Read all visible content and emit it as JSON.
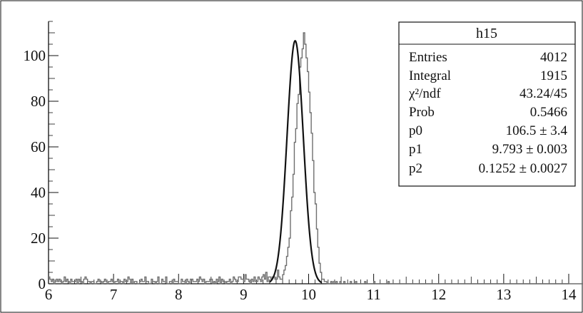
{
  "chart_data": {
    "type": "histogram",
    "title": "",
    "xlabel": "",
    "ylabel": "",
    "xlim": [
      6,
      14
    ],
    "ylim": [
      0,
      115
    ],
    "x_ticks": [
      "6",
      "7",
      "8",
      "9",
      "10",
      "11",
      "12",
      "13",
      "14"
    ],
    "y_ticks": [
      "0",
      "20",
      "40",
      "60",
      "80",
      "100"
    ],
    "grid": false,
    "series": [
      {
        "kind": "histogram",
        "bin_start": 6.0,
        "bin_width": 0.02,
        "values": [
          3,
          2,
          1,
          2,
          0,
          1,
          2,
          1,
          2,
          1,
          0,
          1,
          3,
          1,
          2,
          1,
          0,
          2,
          1,
          1,
          1,
          2,
          0,
          2,
          1,
          1,
          0,
          2,
          3,
          2,
          1,
          1,
          0,
          1,
          1,
          0,
          0,
          1,
          2,
          1,
          1,
          0,
          1,
          2,
          1,
          0,
          1,
          1,
          2,
          1,
          0,
          1,
          1,
          2,
          0,
          1,
          1,
          0,
          2,
          1,
          1,
          3,
          2,
          0,
          2,
          0,
          1,
          1,
          0,
          0,
          1,
          2,
          1,
          1,
          3,
          1,
          1,
          0,
          0,
          2,
          1,
          1,
          0,
          1,
          3,
          0,
          0,
          2,
          1,
          1,
          3,
          0,
          0,
          1,
          1,
          0,
          2,
          1,
          1,
          1,
          0,
          0,
          2,
          1,
          1,
          0,
          2,
          1,
          0,
          2,
          2,
          1,
          1,
          1,
          2,
          1,
          3,
          2,
          1,
          2,
          0,
          1,
          1,
          1,
          2,
          2,
          0,
          1,
          0,
          2,
          1,
          3,
          0,
          2,
          1,
          1,
          0,
          1,
          1,
          2,
          0,
          1,
          3,
          2,
          1,
          1,
          3,
          3,
          2,
          2,
          1,
          4,
          2,
          2,
          1,
          0,
          2,
          1,
          3,
          1,
          1,
          3,
          2,
          1,
          3,
          4,
          2,
          5,
          1,
          3,
          3,
          2,
          3,
          3,
          2,
          2,
          6,
          3,
          2,
          2,
          4,
          6,
          8,
          12,
          16,
          20,
          32,
          38,
          48,
          62,
          68,
          79,
          83,
          95,
          99,
          103,
          110,
          105,
          99,
          93,
          84,
          75,
          66,
          54,
          40,
          35,
          24,
          16,
          9,
          5,
          2,
          2,
          1,
          1,
          0,
          0,
          0,
          1,
          0,
          1,
          0,
          1,
          0,
          0,
          1,
          0,
          0,
          1,
          0,
          0,
          0,
          0,
          1,
          0,
          0,
          0,
          1,
          0,
          0,
          0,
          0,
          0,
          0,
          1,
          0,
          0,
          0,
          0,
          0,
          0,
          1,
          0,
          0,
          0,
          0,
          0,
          0,
          0,
          0,
          0,
          0,
          1,
          0,
          0,
          0,
          0,
          0,
          0,
          0,
          0,
          0,
          0,
          0,
          0,
          0,
          0,
          0,
          0,
          0,
          0,
          0,
          0,
          0,
          0,
          0,
          0,
          0,
          0,
          0,
          0,
          0,
          0,
          0,
          0,
          0,
          0,
          0,
          0,
          0,
          0,
          0,
          0,
          0,
          0,
          0,
          0,
          0,
          0,
          0,
          0,
          0,
          0,
          0,
          0,
          0,
          0,
          0,
          0,
          0,
          0,
          0,
          0,
          0,
          0,
          0,
          0,
          0,
          0,
          0,
          0,
          0,
          0,
          0,
          0,
          0,
          0,
          0,
          0,
          0,
          0,
          0,
          0,
          0,
          0,
          0,
          0,
          0,
          0,
          0,
          0,
          0,
          0,
          0,
          0,
          0,
          0,
          0,
          0,
          0,
          0,
          0,
          0,
          0,
          0,
          0,
          0,
          0,
          0,
          0,
          0,
          0,
          0,
          0,
          0,
          0,
          0,
          0,
          0,
          0,
          0,
          0,
          0,
          0,
          0,
          0,
          0,
          0,
          0,
          0,
          0,
          0,
          0,
          0,
          0,
          0,
          0,
          0,
          0,
          0,
          0,
          0,
          0,
          0,
          0,
          0,
          0,
          0,
          0,
          0,
          0,
          0,
          0,
          0,
          0,
          0,
          0,
          0,
          0,
          0,
          0,
          0,
          0,
          0
        ]
      },
      {
        "kind": "gaussian-fit",
        "p0": 106.5,
        "p1": 9.793,
        "p2": 0.1252,
        "x_range": [
          9.4,
          10.2
        ]
      }
    ],
    "stats_box": {
      "title": "h15",
      "rows": [
        {
          "label": "Entries",
          "value": "4012"
        },
        {
          "label": "Integral",
          "value": "1915"
        },
        {
          "label": "χ²/ndf",
          "value": "43.24/45"
        },
        {
          "label": "Prob",
          "value": "0.5466"
        },
        {
          "label": "p0",
          "value": "106.5 ± 3.4"
        },
        {
          "label": "p1",
          "value": "9.793 ± 0.003"
        },
        {
          "label": "p2",
          "value": "0.1252 ± 0.0027"
        }
      ]
    }
  },
  "colors": {
    "histogram": "#6f6f6f",
    "fit": "#111111",
    "axis": "#111111"
  }
}
